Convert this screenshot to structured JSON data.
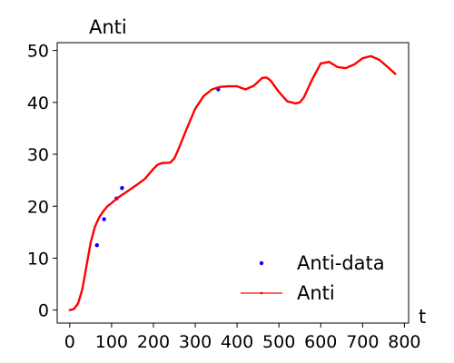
{
  "chart_data": {
    "type": "line",
    "title": "Anti",
    "xlabel": "t",
    "ylabel": "",
    "xlim": [
      -30,
      810
    ],
    "ylim": [
      -2.5,
      51.5
    ],
    "grid": false,
    "legend_position": "lower-right",
    "x_ticks": [
      0,
      100,
      200,
      300,
      400,
      500,
      600,
      700,
      800
    ],
    "y_ticks": [
      0,
      10,
      20,
      30,
      40,
      50
    ],
    "series": [
      {
        "name": "Anti-data",
        "style": "points",
        "color": "#0000ff",
        "x": [
          65,
          82,
          112,
          125,
          355
        ],
        "y": [
          12.5,
          17.5,
          21.5,
          23.5,
          42.5
        ]
      },
      {
        "name": "Anti",
        "style": "line",
        "color": "#ff0000",
        "x": [
          0,
          10,
          20,
          30,
          40,
          50,
          60,
          70,
          80,
          90,
          100,
          110,
          120,
          140,
          160,
          180,
          200,
          210,
          220,
          240,
          250,
          260,
          280,
          300,
          320,
          340,
          360,
          380,
          400,
          420,
          440,
          460,
          470,
          480,
          500,
          520,
          540,
          550,
          560,
          580,
          600,
          620,
          640,
          660,
          680,
          700,
          720,
          740,
          760,
          778
        ],
        "y": [
          0,
          0.2,
          1.3,
          4,
          8.5,
          13,
          16,
          17.8,
          19,
          20,
          20.6,
          21.3,
          21.9,
          23,
          24.1,
          25.3,
          27.2,
          28,
          28.3,
          28.4,
          29.2,
          31,
          35,
          38.8,
          41.2,
          42.5,
          43,
          43.1,
          43.1,
          42.5,
          43.2,
          44.7,
          44.8,
          44.2,
          42,
          40.2,
          39.8,
          40,
          41,
          44.5,
          47.5,
          47.8,
          46.8,
          46.6,
          47.3,
          48.5,
          48.9,
          48.2,
          46.8,
          45.5
        ]
      }
    ]
  }
}
